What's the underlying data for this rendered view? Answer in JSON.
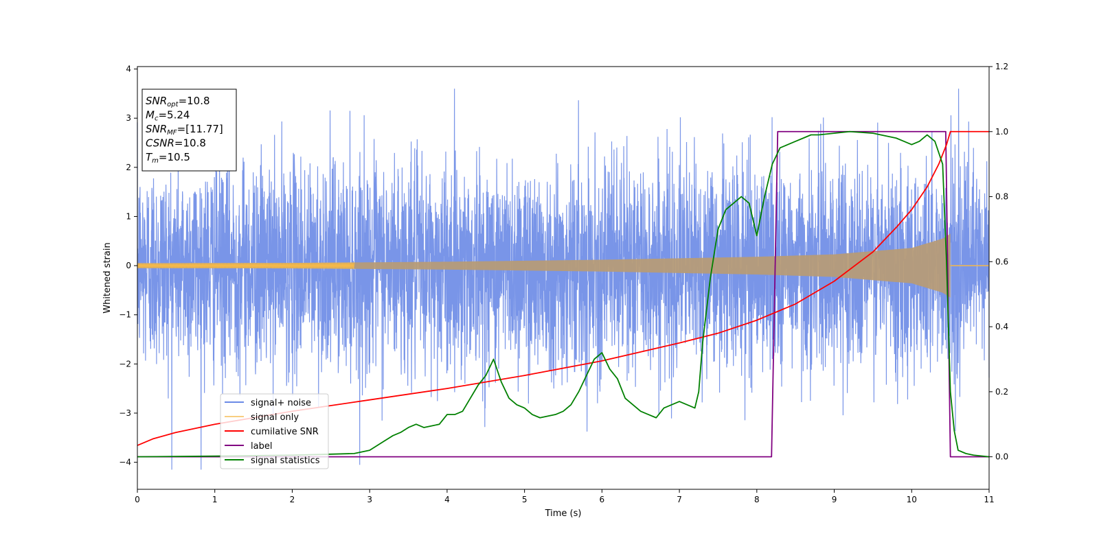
{
  "chart_data": {
    "type": "line",
    "title": "",
    "xlabel": "Time (s)",
    "ylabel": "Whitened strain",
    "y2label": "",
    "xlim": [
      0,
      11
    ],
    "ylim": [
      -4.55,
      4.05
    ],
    "y2lim": [
      -0.1,
      1.2
    ],
    "x_ticks": [
      0,
      1,
      2,
      3,
      4,
      5,
      6,
      7,
      8,
      9,
      10,
      11
    ],
    "y_ticks": [
      4,
      3,
      2,
      1,
      0,
      -1,
      -2,
      -3,
      -4
    ],
    "y_tick_labels": [
      "4",
      "3",
      "2",
      "1",
      "0",
      "−1",
      "−2",
      "−3",
      "−4"
    ],
    "y2_ticks": [
      1.2,
      1.0,
      0.8,
      0.6,
      0.4,
      0.2,
      0.0
    ],
    "y2_tick_labels": [
      "1.2",
      "1.0",
      "0.8",
      "0.6",
      "0.4",
      "0.2",
      "0.0"
    ],
    "grid": false,
    "legend_position": "lower-left",
    "annotation": {
      "lines": [
        {
          "sym": "SNR",
          "sub": "opt",
          "rest": "=10.8"
        },
        {
          "sym": "M",
          "sub": "c",
          "rest": "=5.24"
        },
        {
          "sym": "SNR",
          "sub": "MF",
          "rest": "=[11.77]"
        },
        {
          "sym": "CSNR",
          "sub": "",
          "rest": "=10.8"
        },
        {
          "sym": "T",
          "sub": "m",
          "rest": "=10.5"
        }
      ]
    },
    "series": [
      {
        "name": "signal+ noise",
        "axis": "left",
        "color": "#6a8ae6",
        "description": "whitened noise, roughly unit variance, with spikes up to about ±3.6"
      },
      {
        "name": "signal only",
        "axis": "left",
        "color": "#f5b94a",
        "description": "chirp with amplitude growing from about 0.05 to 0.65, ending at 10.5 s",
        "amplitude_points": [
          [
            0,
            0.05
          ],
          [
            2,
            0.055
          ],
          [
            4,
            0.08
          ],
          [
            6,
            0.12
          ],
          [
            8,
            0.18
          ],
          [
            9,
            0.23
          ],
          [
            10,
            0.36
          ],
          [
            10.4,
            0.55
          ],
          [
            10.5,
            0.65
          ]
        ]
      },
      {
        "name": "cumilative SNR",
        "axis": "right",
        "color": "#ff0000",
        "x": [
          0,
          0.2,
          0.5,
          1,
          1.5,
          2,
          3,
          4,
          5,
          6,
          7,
          7.5,
          8,
          8.5,
          9,
          9.5,
          9.8,
          10,
          10.2,
          10.35,
          10.45,
          10.5,
          11
        ],
        "y": [
          0.035,
          0.055,
          0.075,
          0.1,
          0.12,
          0.14,
          0.175,
          0.21,
          0.25,
          0.295,
          0.35,
          0.38,
          0.42,
          0.47,
          0.54,
          0.63,
          0.705,
          0.76,
          0.83,
          0.9,
          0.96,
          1.0,
          1.0
        ]
      },
      {
        "name": "label",
        "axis": "right",
        "color": "#800080",
        "x": [
          0,
          8.19,
          8.27,
          10.44,
          10.5,
          11
        ],
        "y": [
          0.0,
          0.0,
          1.0,
          1.0,
          0.0,
          0.0
        ]
      },
      {
        "name": "signal statistics",
        "axis": "right",
        "color": "#008000",
        "x": [
          0,
          1,
          2,
          2.5,
          2.8,
          3,
          3.1,
          3.2,
          3.3,
          3.4,
          3.5,
          3.6,
          3.7,
          3.8,
          3.9,
          4.0,
          4.1,
          4.2,
          4.3,
          4.4,
          4.5,
          4.6,
          4.7,
          4.8,
          4.9,
          5.0,
          5.1,
          5.2,
          5.3,
          5.4,
          5.5,
          5.6,
          5.7,
          5.8,
          5.9,
          6.0,
          6.1,
          6.2,
          6.3,
          6.4,
          6.5,
          6.6,
          6.7,
          6.8,
          6.9,
          7.0,
          7.1,
          7.2,
          7.25,
          7.3,
          7.4,
          7.5,
          7.6,
          7.7,
          7.8,
          7.9,
          8.0,
          8.05,
          8.1,
          8.15,
          8.2,
          8.3,
          8.4,
          8.5,
          8.6,
          8.7,
          8.8,
          9.0,
          9.2,
          9.5,
          9.8,
          9.9,
          10.0,
          10.1,
          10.2,
          10.3,
          10.4,
          10.45,
          10.5,
          10.55,
          10.6,
          10.7,
          10.8,
          11.0
        ],
        "y": [
          0.0,
          0.002,
          0.005,
          0.008,
          0.01,
          0.02,
          0.035,
          0.05,
          0.065,
          0.075,
          0.09,
          0.1,
          0.09,
          0.095,
          0.1,
          0.13,
          0.13,
          0.14,
          0.18,
          0.22,
          0.25,
          0.3,
          0.23,
          0.18,
          0.16,
          0.15,
          0.13,
          0.12,
          0.125,
          0.13,
          0.14,
          0.16,
          0.2,
          0.25,
          0.3,
          0.32,
          0.27,
          0.24,
          0.18,
          0.16,
          0.14,
          0.13,
          0.12,
          0.15,
          0.16,
          0.17,
          0.16,
          0.15,
          0.2,
          0.35,
          0.55,
          0.7,
          0.76,
          0.78,
          0.8,
          0.78,
          0.68,
          0.74,
          0.8,
          0.85,
          0.9,
          0.95,
          0.96,
          0.97,
          0.98,
          0.99,
          0.99,
          0.995,
          1.0,
          0.995,
          0.98,
          0.97,
          0.96,
          0.97,
          0.99,
          0.97,
          0.9,
          0.6,
          0.2,
          0.08,
          0.02,
          0.01,
          0.005,
          0.0
        ]
      }
    ]
  }
}
